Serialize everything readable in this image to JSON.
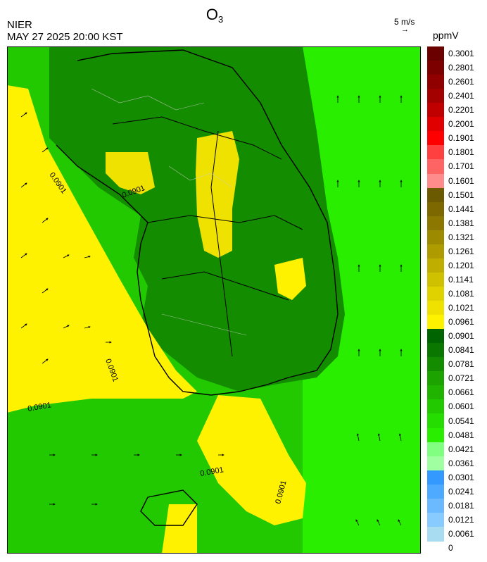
{
  "header": {
    "title_main": "O",
    "title_sub": "3",
    "organization": "NIER",
    "timestamp": "MAY 27 2025 20:00 KST",
    "vector_scale_label": "5 m/s",
    "vector_arrow": "→",
    "unit": "ppmV"
  },
  "map": {
    "contour_labels": [
      "0.0901",
      "0.0901",
      "0.0901",
      "0.0901",
      "0.0901",
      "0.0901"
    ]
  },
  "colorbar": {
    "labels": [
      "0.3001",
      "0.2801",
      "0.2601",
      "0.2401",
      "0.2201",
      "0.2001",
      "0.1901",
      "0.1801",
      "0.1701",
      "0.1601",
      "0.1501",
      "0.1441",
      "0.1381",
      "0.1321",
      "0.1261",
      "0.1201",
      "0.1141",
      "0.1081",
      "0.1021",
      "0.0961",
      "0.0901",
      "0.0841",
      "0.0781",
      "0.0721",
      "0.0661",
      "0.0601",
      "0.0541",
      "0.0481",
      "0.0421",
      "0.0361",
      "0.0301",
      "0.0241",
      "0.0181",
      "0.0121",
      "0.0061",
      "0"
    ],
    "colors": [
      "#6b0000",
      "#7d0000",
      "#910000",
      "#a30000",
      "#c00000",
      "#e00000",
      "#ff0000",
      "#ff4040",
      "#ff6464",
      "#ff8c8c",
      "#6b5a00",
      "#7d6800",
      "#8c7800",
      "#9c8a00",
      "#ad9b00",
      "#bfad00",
      "#cfc000",
      "#dfd200",
      "#efe200",
      "#fff200",
      "#006400",
      "#0a7800",
      "#138c00",
      "#1ca300",
      "#20b400",
      "#22c800",
      "#25dd00",
      "#2aee00",
      "#80ff80",
      "#a0ffa0",
      "#3399ff",
      "#4daaff",
      "#6bbaff",
      "#88ccff",
      "#a8dcf0"
    ]
  }
}
